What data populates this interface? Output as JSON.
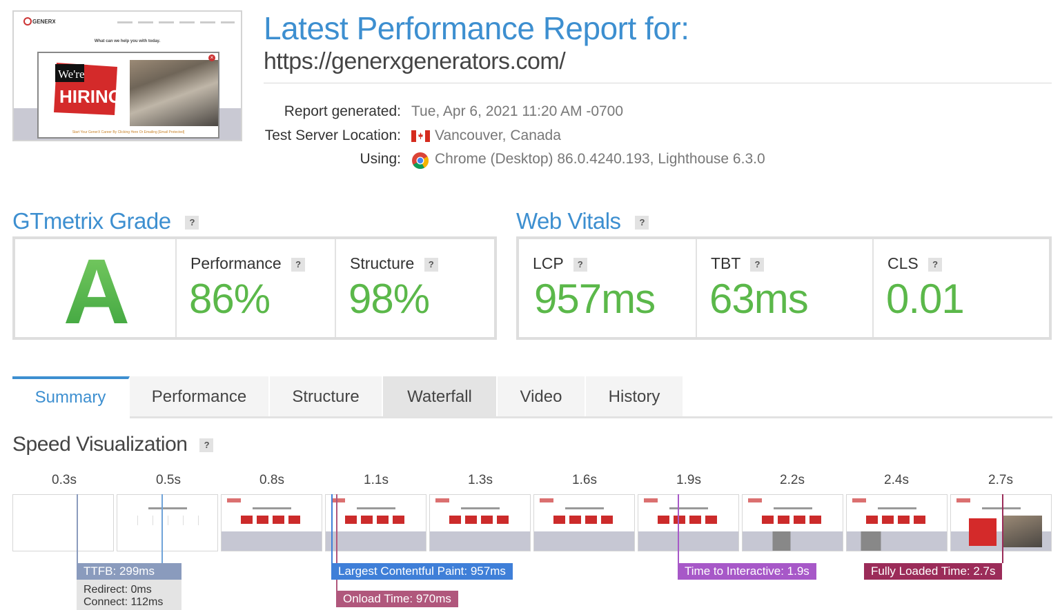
{
  "report": {
    "title": "Latest Performance Report for:",
    "url": "https://generxgenerators.com/"
  },
  "thumbnail": {
    "logo_text": "GENERX",
    "help_text": "What can we help you with today.",
    "hiring_line1": "We're",
    "hiring_line2": "HIRING",
    "cta_text": "Start Your GenerX Career By Clicking Here Or Emailing [Email Protected]"
  },
  "meta": {
    "generated_label": "Report generated:",
    "generated_value": "Tue, Apr 6, 2021 11:20 AM -0700",
    "location_label": "Test Server Location:",
    "location_value": "Vancouver, Canada",
    "location_flag_icon": "canada-flag-icon",
    "using_label": "Using:",
    "using_value": "Chrome (Desktop) 86.0.4240.193, Lighthouse 6.3.0",
    "using_icon": "chrome-icon"
  },
  "grade": {
    "title": "GTmetrix Grade",
    "help": "?",
    "letter": "A",
    "performance_label": "Performance",
    "performance_value": "86%",
    "structure_label": "Structure",
    "structure_value": "98%"
  },
  "vitals": {
    "title": "Web Vitals",
    "help": "?",
    "lcp_label": "LCP",
    "lcp_value": "957ms",
    "tbt_label": "TBT",
    "tbt_value": "63ms",
    "cls_label": "CLS",
    "cls_value": "0.01"
  },
  "tabs": [
    {
      "label": "Summary",
      "state": "active"
    },
    {
      "label": "Performance",
      "state": "normal"
    },
    {
      "label": "Structure",
      "state": "normal"
    },
    {
      "label": "Waterfall",
      "state": "hover"
    },
    {
      "label": "Video",
      "state": "normal"
    },
    {
      "label": "History",
      "state": "normal"
    }
  ],
  "speed": {
    "title": "Speed Visualization",
    "help": "?",
    "ticks": [
      "0.3s",
      "0.5s",
      "0.8s",
      "1.1s",
      "1.3s",
      "1.6s",
      "1.9s",
      "2.2s",
      "2.4s",
      "2.7s"
    ],
    "markers": {
      "ttfb": "TTFB: 299ms",
      "lcp": "Largest Contentful Paint: 957ms",
      "onload": "Onload Time: 970ms",
      "tti": "Time to Interactive: 1.9s",
      "fully_loaded": "Fully Loaded Time: 2.7s"
    },
    "ttfb_detail": {
      "redirect": "Redirect: 0ms",
      "connect": "Connect: 112ms"
    }
  },
  "colors": {
    "accent": "#3d8fd0",
    "grade_green": "#5bb84a",
    "ttfb": "#8a9bbd",
    "lcp": "#3f7fd8",
    "onload": "#b0577c",
    "tti": "#a758c8",
    "fully_loaded": "#9b2c59"
  }
}
